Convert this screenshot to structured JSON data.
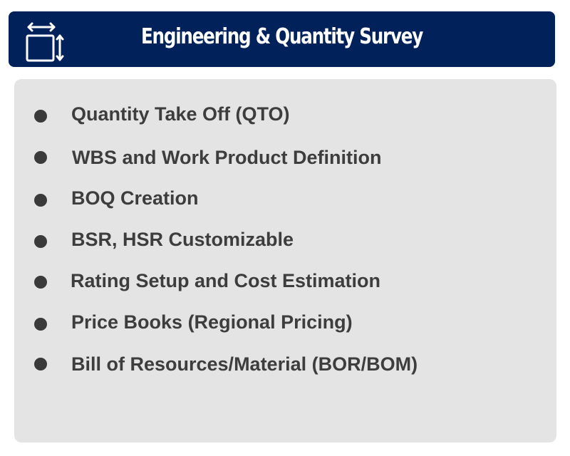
{
  "header": {
    "title": "Engineering & Quantity Survey",
    "icon": "dimensions-icon",
    "background": "#00215a"
  },
  "items": [
    {
      "label": "Quantity Take Off (QTO)"
    },
    {
      "label": "WBS and Work Product Definition"
    },
    {
      "label": "BOQ Creation"
    },
    {
      "label": "BSR, HSR Customizable"
    },
    {
      "label": "Rating Setup and Cost Estimation"
    },
    {
      "label": "Price Books (Regional Pricing)"
    },
    {
      "label": "Bill of Resources/Material (BOR/BOM)"
    }
  ]
}
